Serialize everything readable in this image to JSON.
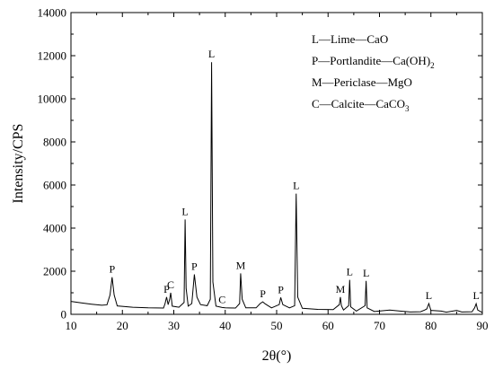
{
  "chart_data": {
    "type": "line",
    "title": "",
    "xlabel": "2θ(°)",
    "ylabel": "Intensity/CPS",
    "xlim": [
      10,
      90
    ],
    "ylim": [
      0,
      14000
    ],
    "x_ticks": [
      "10",
      "20",
      "30",
      "40",
      "50",
      "60",
      "70",
      "80",
      "90"
    ],
    "y_ticks": [
      "0",
      "2000",
      "4000",
      "6000",
      "8000",
      "10000",
      "12000",
      "14000"
    ],
    "grid": false,
    "legend_position": "top-right",
    "series": [
      {
        "points": [
          [
            10,
            600
          ],
          [
            12,
            530
          ],
          [
            14,
            470
          ],
          [
            16,
            420
          ],
          [
            17,
            440
          ],
          [
            17.6,
            900
          ],
          [
            18.0,
            1720
          ],
          [
            18.4,
            900
          ],
          [
            19,
            390
          ],
          [
            22,
            330
          ],
          [
            25,
            300
          ],
          [
            28,
            290
          ],
          [
            28.3,
            500
          ],
          [
            28.6,
            800
          ],
          [
            28.9,
            450
          ],
          [
            29.2,
            700
          ],
          [
            29.4,
            1000
          ],
          [
            29.7,
            380
          ],
          [
            31,
            330
          ],
          [
            32.0,
            550
          ],
          [
            32.2,
            4400
          ],
          [
            32.4,
            1200
          ],
          [
            32.8,
            380
          ],
          [
            33.5,
            500
          ],
          [
            34.0,
            1850
          ],
          [
            34.5,
            800
          ],
          [
            35.2,
            450
          ],
          [
            36.5,
            400
          ],
          [
            37.1,
            700
          ],
          [
            37.35,
            11700
          ],
          [
            37.6,
            1500
          ],
          [
            38.2,
            380
          ],
          [
            39.4,
            320
          ],
          [
            40,
            300
          ],
          [
            42,
            290
          ],
          [
            42.8,
            500
          ],
          [
            43.0,
            1900
          ],
          [
            43.3,
            700
          ],
          [
            44,
            300
          ],
          [
            46,
            300
          ],
          [
            46.8,
            500
          ],
          [
            47.3,
            580
          ],
          [
            47.8,
            480
          ],
          [
            49,
            300
          ],
          [
            50.5,
            450
          ],
          [
            50.8,
            780
          ],
          [
            51.2,
            450
          ],
          [
            52.5,
            300
          ],
          [
            53.5,
            400
          ],
          [
            53.8,
            5600
          ],
          [
            54.1,
            800
          ],
          [
            55,
            280
          ],
          [
            58,
            230
          ],
          [
            61,
            220
          ],
          [
            62.2,
            450
          ],
          [
            62.4,
            800
          ],
          [
            62.6,
            400
          ],
          [
            63,
            200
          ],
          [
            64.0,
            400
          ],
          [
            64.2,
            1600
          ],
          [
            64.4,
            350
          ],
          [
            65.5,
            150
          ],
          [
            67.2,
            400
          ],
          [
            67.4,
            1550
          ],
          [
            67.6,
            300
          ],
          [
            69,
            130
          ],
          [
            72,
            200
          ],
          [
            74,
            150
          ],
          [
            76,
            110
          ],
          [
            78,
            120
          ],
          [
            78.8,
            200
          ],
          [
            79.2,
            250
          ],
          [
            79.6,
            500
          ],
          [
            80,
            180
          ],
          [
            82,
            150
          ],
          [
            83,
            100
          ],
          [
            85,
            180
          ],
          [
            86,
            110
          ],
          [
            88,
            120
          ],
          [
            88.5,
            300
          ],
          [
            88.8,
            490
          ],
          [
            89.1,
            200
          ],
          [
            90,
            80
          ]
        ]
      }
    ],
    "annotations": [
      {
        "text": "P",
        "x": 18.0,
        "y": 1720
      },
      {
        "text": "P",
        "x": 28.6,
        "y": 800
      },
      {
        "text": "C",
        "x": 29.4,
        "y": 1000
      },
      {
        "text": "L",
        "x": 32.2,
        "y": 4400
      },
      {
        "text": "P",
        "x": 34.0,
        "y": 1850
      },
      {
        "text": "L",
        "x": 37.35,
        "y": 11700
      },
      {
        "text": "C",
        "x": 39.4,
        "y": 320
      },
      {
        "text": "M",
        "x": 43.0,
        "y": 1900
      },
      {
        "text": "P",
        "x": 47.3,
        "y": 580
      },
      {
        "text": "P",
        "x": 50.8,
        "y": 780
      },
      {
        "text": "L",
        "x": 53.8,
        "y": 5600
      },
      {
        "text": "M",
        "x": 62.4,
        "y": 800
      },
      {
        "text": "L",
        "x": 64.2,
        "y": 1600
      },
      {
        "text": "L",
        "x": 67.4,
        "y": 1550
      },
      {
        "text": "L",
        "x": 79.6,
        "y": 500
      },
      {
        "text": "L",
        "x": 88.8,
        "y": 490
      }
    ],
    "legend": [
      {
        "text": "L—Lime—CaO",
        "sub": "",
        "tail": ""
      },
      {
        "text": "P—Portlandite—Ca(OH)",
        "sub": "2",
        "tail": ""
      },
      {
        "text": "M—Periclase—MgO",
        "sub": "",
        "tail": ""
      },
      {
        "text": "C—Calcite—CaCO",
        "sub": "3",
        "tail": ""
      }
    ]
  }
}
